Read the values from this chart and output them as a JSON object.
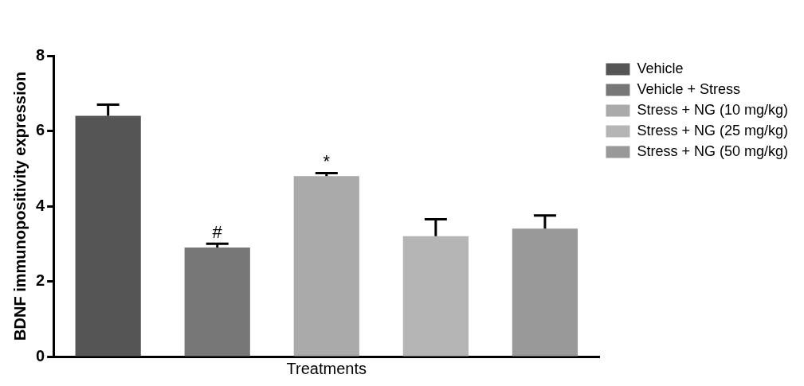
{
  "chart_data": {
    "type": "bar",
    "xlabel": "Treatments",
    "ylabel": "BDNF immunopositivity expression",
    "categories": [
      null,
      null,
      null,
      null,
      null
    ],
    "series": [
      {
        "name": "Vehicle",
        "color": "#555555",
        "values": [
          6.4,
          null,
          null,
          null,
          null
        ],
        "errors": [
          0.3,
          null,
          null,
          null,
          null
        ]
      },
      {
        "name": "Vehicle + Stress",
        "color": "#777777",
        "values": [
          null,
          2.9,
          null,
          null,
          null
        ],
        "errors": [
          null,
          0.1,
          null,
          null,
          null
        ]
      },
      {
        "name": "Stress + NG (10 mg/kg)",
        "color": "#aaaaaa",
        "values": [
          null,
          null,
          4.8,
          null,
          null
        ],
        "errors": [
          null,
          null,
          0.08,
          null,
          null
        ]
      },
      {
        "name": "Stress + NG (25 mg/kg)",
        "color": "#b5b5b5",
        "values": [
          null,
          null,
          null,
          3.2,
          null
        ],
        "errors": [
          null,
          null,
          null,
          0.45,
          null
        ]
      },
      {
        "name": "Stress + NG (50 mg/kg)",
        "color": "#999999",
        "values": [
          null,
          null,
          null,
          null,
          3.4
        ],
        "errors": [
          null,
          null,
          null,
          null,
          0.35
        ]
      }
    ],
    "ylim": [
      0,
      8
    ],
    "yticks": [
      0,
      2,
      4,
      6,
      8
    ],
    "annotations": [
      {
        "text": "#",
        "y": 3.0
      },
      {
        "text": "*",
        "y": 4.88
      }
    ],
    "tick_labels": "y",
    "grid": false,
    "legend": "right"
  }
}
